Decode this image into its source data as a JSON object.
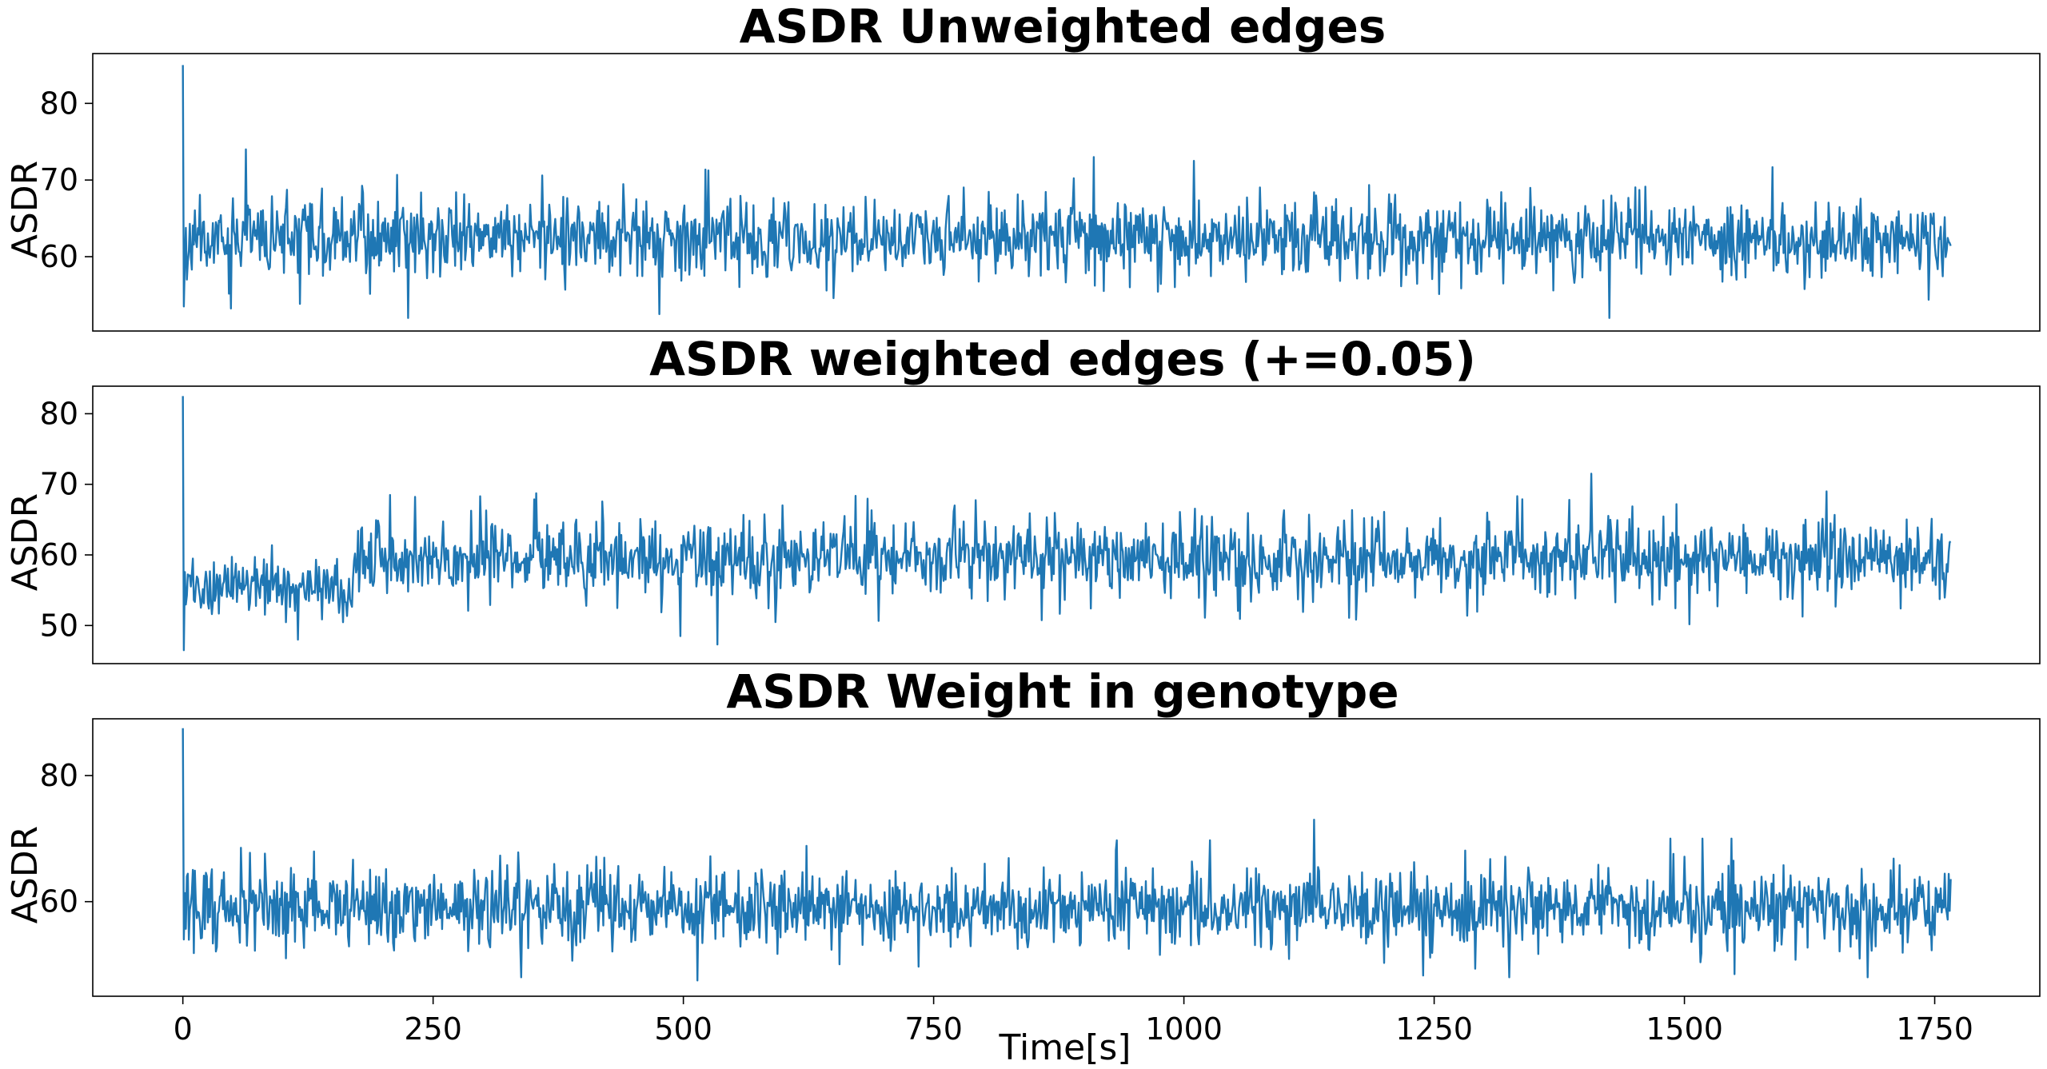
{
  "figure": {
    "xlabel": "Time[s]"
  },
  "chart_data": [
    {
      "type": "line",
      "title": "ASDR Unweighted edges",
      "xlabel": "",
      "ylabel": "ASDR",
      "xlim": [
        -90,
        1855
      ],
      "ylim": [
        50.3,
        86.5
      ],
      "x_ticks": [],
      "y_ticks": [
        60,
        70,
        80
      ],
      "color": "#1f77b4",
      "samples": {
        "x_start": 0,
        "x_end": 1766,
        "step": 1,
        "count": 1767,
        "first_value": 85.0
      },
      "stats": {
        "center": 62.3,
        "typical_low": 56.0,
        "typical_high": 68.5,
        "max": 85.0,
        "min": 52.0
      },
      "segments": [
        {
          "x_start": 0,
          "x_end": 1766,
          "center": 62.3,
          "spread": 2.4
        }
      ],
      "extremes": [
        {
          "x": 0,
          "y": 85.0
        },
        {
          "x": 1,
          "y": 53.5
        },
        {
          "x": 63,
          "y": 74.0
        },
        {
          "x": 225,
          "y": 52.0
        },
        {
          "x": 910,
          "y": 73.0
        },
        {
          "x": 1010,
          "y": 72.5
        },
        {
          "x": 1425,
          "y": 52.0
        }
      ]
    },
    {
      "type": "line",
      "title": "ASDR weighted edges (+=0.05)",
      "xlabel": "",
      "ylabel": "ASDR",
      "xlim": [
        -90,
        1855
      ],
      "ylim": [
        44.6,
        83.9
      ],
      "x_ticks": [],
      "y_ticks": [
        50,
        60,
        70,
        80
      ],
      "color": "#1f77b4",
      "samples": {
        "x_start": 0,
        "x_end": 1766,
        "step": 1,
        "count": 1767,
        "first_value": 82.5
      },
      "stats": {
        "center": 59.2,
        "typical_low": 53.0,
        "typical_high": 65.5,
        "max": 82.5,
        "min": 46.5
      },
      "segments": [
        {
          "x_start": 0,
          "x_end": 170,
          "center": 55.5,
          "spread": 2.0
        },
        {
          "x_start": 170,
          "x_end": 1766,
          "center": 59.5,
          "spread": 2.6
        }
      ],
      "extremes": [
        {
          "x": 0,
          "y": 82.5
        },
        {
          "x": 1,
          "y": 46.5
        },
        {
          "x": 115,
          "y": 48.0
        },
        {
          "x": 497,
          "y": 48.5
        },
        {
          "x": 1407,
          "y": 71.5
        }
      ]
    },
    {
      "type": "line",
      "title": "ASDR Weight in genotype",
      "xlabel": "Time[s]",
      "ylabel": "ASDR",
      "xlim": [
        -90,
        1855
      ],
      "ylim": [
        45.0,
        89.0
      ],
      "x_ticks": [
        0,
        250,
        500,
        750,
        1000,
        1250,
        1500,
        1750
      ],
      "y_ticks": [
        60,
        80
      ],
      "color": "#1f77b4",
      "samples": {
        "x_start": 0,
        "x_end": 1766,
        "step": 1,
        "count": 1767,
        "first_value": 87.5
      },
      "stats": {
        "center": 59.0,
        "typical_low": 51.5,
        "typical_high": 66.5,
        "max": 87.5,
        "min": 47.5
      },
      "segments": [
        {
          "x_start": 0,
          "x_end": 1766,
          "center": 59.0,
          "spread": 3.0
        }
      ],
      "extremes": [
        {
          "x": 0,
          "y": 87.5
        },
        {
          "x": 1,
          "y": 54.0
        },
        {
          "x": 514,
          "y": 47.5
        },
        {
          "x": 1130,
          "y": 73.0
        },
        {
          "x": 1130,
          "y": 49.5
        },
        {
          "x": 1550,
          "y": 48.5
        }
      ]
    }
  ]
}
